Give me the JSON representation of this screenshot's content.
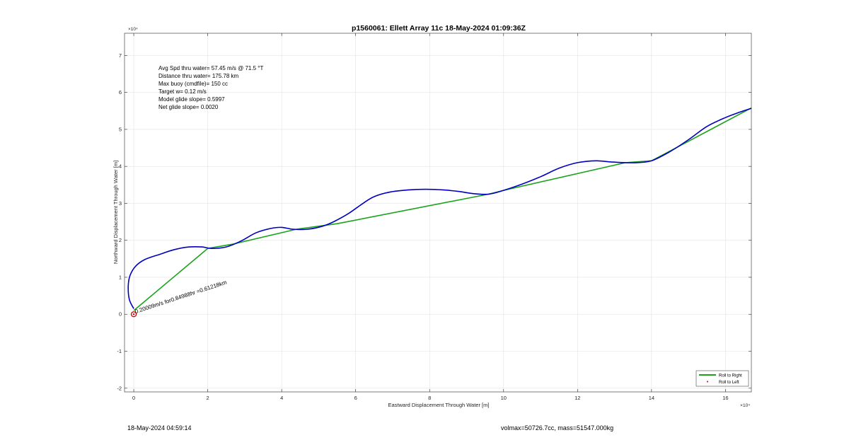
{
  "chart_data": {
    "type": "line",
    "title": "p1560061: Ellett Array 11c 18-May-2024 01:09:36Z",
    "xlabel": "Eastward Displacement Through Water [m]",
    "ylabel": "Northward Displacement Through Water [m]",
    "x_exponent": "×10⁴",
    "y_exponent": "×10⁴",
    "xlim": [
      -0.25,
      16.7
    ],
    "ylim": [
      -2.1,
      7.6
    ],
    "xticks": [
      0,
      2,
      4,
      6,
      8,
      10,
      12,
      14,
      16
    ],
    "yticks": [
      -2,
      -1,
      0,
      1,
      2,
      3,
      4,
      5,
      6,
      7
    ],
    "grid": true,
    "legend_position": "bottom-right",
    "colors": {
      "roll_right": "#1aa31a",
      "track": "#0000c0",
      "marker": "#cc0000"
    },
    "series": [
      {
        "name": "Roll to Right",
        "color": "#1aa31a",
        "x": [
          0.0,
          2.0,
          2.7,
          4.4,
          5.5,
          9.6,
          10.0,
          13.3,
          14.0,
          16.7
        ],
        "y": [
          0.1,
          1.78,
          1.9,
          2.3,
          2.45,
          3.25,
          3.35,
          4.1,
          4.15,
          5.58
        ]
      },
      {
        "name": "Roll to Left",
        "color": "#cc0000",
        "x": [
          0.0
        ],
        "y": [
          0.0
        ]
      }
    ],
    "track": {
      "color": "#0000c0",
      "x": [
        0.0,
        -0.12,
        -0.15,
        -0.1,
        0.05,
        0.3,
        0.7,
        1.1,
        1.5,
        1.85,
        2.1,
        2.5,
        2.9,
        3.3,
        3.7,
        4.0,
        4.3,
        4.7,
        5.1,
        5.4,
        5.8,
        6.2,
        6.5,
        6.9,
        7.4,
        7.9,
        8.4,
        8.8,
        9.2,
        9.6,
        10.0,
        10.5,
        11.0,
        11.5,
        12.0,
        12.5,
        12.9,
        13.3,
        13.6,
        14.0,
        14.5,
        15.0,
        15.5,
        16.0,
        16.4,
        16.7
      ],
      "y": [
        0.15,
        0.4,
        0.75,
        1.05,
        1.3,
        1.48,
        1.62,
        1.75,
        1.82,
        1.82,
        1.78,
        1.82,
        1.98,
        2.2,
        2.32,
        2.35,
        2.3,
        2.3,
        2.38,
        2.5,
        2.72,
        3.0,
        3.18,
        3.3,
        3.36,
        3.38,
        3.36,
        3.32,
        3.26,
        3.25,
        3.35,
        3.52,
        3.72,
        3.95,
        4.1,
        4.15,
        4.12,
        4.1,
        4.1,
        4.15,
        4.4,
        4.72,
        5.08,
        5.32,
        5.47,
        5.57
      ]
    },
    "marker_point": {
      "x": 0.0,
      "y": 0.0
    },
    "annotation": {
      "text": "0.20009m/s for0.84988hr =0.61218km",
      "x": 0.05,
      "y": 0.02
    },
    "stats_lines": [
      "Avg Spd thru water= 57.45 m/s @  71.5 °T",
      "Distance thru water= 175.78 km",
      "Max buoy (cmdfile)= 150 cc",
      "Target w= 0.12 m/s",
      "Model glide slope= 0.5997",
      "Net glide slope= 0.0020"
    ]
  },
  "footer": {
    "timestamp": "18-May-2024 04:59:14",
    "mass_info": "volmax=50726.7cc, mass=51547.000kg"
  }
}
